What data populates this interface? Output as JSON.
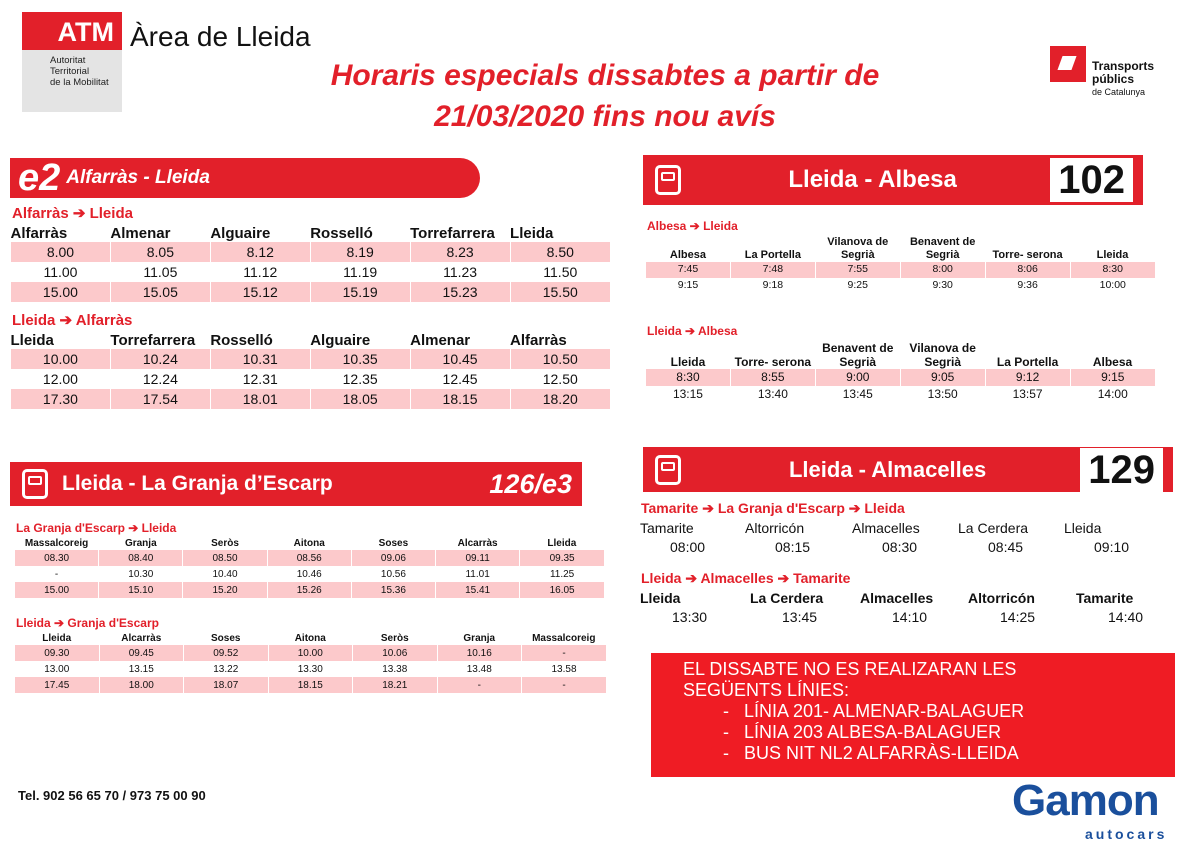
{
  "header": {
    "atm": "ATM",
    "atm_sub": [
      "Autoritat",
      "Territorial",
      "de la Mobilitat"
    ],
    "area": "Àrea de Lleida",
    "title_line1": "Horaris especials dissabtes a partir de",
    "title_line2": "21/03/2020 fins nou avís",
    "tpc_line1": "Transports",
    "tpc_line2": "públics",
    "tpc_line3": "de Catalunya"
  },
  "e2": {
    "code": "e2",
    "route": "Alfarràs - Lleida",
    "tables": [
      {
        "title": "Alfarràs  ➔  Lleida",
        "cols": [
          "Alfarràs",
          "Almenar",
          "Alguaire",
          "Rosselló",
          "Torrefarrera",
          "Lleida"
        ],
        "rows": [
          [
            "8.00",
            "8.05",
            "8.12",
            "8.19",
            "8.23",
            "8.50"
          ],
          [
            "11.00",
            "11.05",
            "11.12",
            "11.19",
            "11.23",
            "11.50"
          ],
          [
            "15.00",
            "15.05",
            "15.12",
            "15.19",
            "15.23",
            "15.50"
          ]
        ]
      },
      {
        "title": "Lleida  ➔  Alfarràs",
        "cols": [
          "Lleida",
          "Torrefarrera",
          "Rosselló",
          "Alguaire",
          "Almenar",
          "Alfarràs"
        ],
        "rows": [
          [
            "10.00",
            "10.24",
            "10.31",
            "10.35",
            "10.45",
            "10.50"
          ],
          [
            "12.00",
            "12.24",
            "12.31",
            "12.35",
            "12.45",
            "12.50"
          ],
          [
            "17.30",
            "17.54",
            "18.01",
            "18.05",
            "18.15",
            "18.20"
          ]
        ]
      }
    ]
  },
  "l126": {
    "route": "Lleida - La Granja d’Escarp",
    "num": "126/e3",
    "tables": [
      {
        "title": "La Granja d'Escarp  ➔  Lleida",
        "cols": [
          "Massalcoreig",
          "Granja",
          "Seròs",
          "Aitona",
          "Soses",
          "Alcarràs",
          "Lleida"
        ],
        "rows": [
          [
            "08.30",
            "08.40",
            "08.50",
            "08.56",
            "09.06",
            "09.11",
            "09.35"
          ],
          [
            "-",
            "10.30",
            "10.40",
            "10.46",
            "10.56",
            "11.01",
            "11.25"
          ],
          [
            "15.00",
            "15.10",
            "15.20",
            "15.26",
            "15.36",
            "15.41",
            "16.05"
          ]
        ]
      },
      {
        "title": "Lleida  ➔  Granja d'Escarp",
        "cols": [
          "Lleida",
          "Alcarràs",
          "Soses",
          "Aitona",
          "Seròs",
          "Granja",
          "Massalcoreig"
        ],
        "rows": [
          [
            "09.30",
            "09.45",
            "09.52",
            "10.00",
            "10.06",
            "10.16",
            "-"
          ],
          [
            "13.00",
            "13.15",
            "13.22",
            "13.30",
            "13.38",
            "13.48",
            "13.58"
          ],
          [
            "17.45",
            "18.00",
            "18.07",
            "18.15",
            "18.21",
            "-",
            "-"
          ]
        ]
      }
    ]
  },
  "l102": {
    "route": "Lleida - Albesa",
    "num": "102",
    "tables": [
      {
        "title": "Albesa  ➔  Lleida",
        "cols": [
          "Albesa",
          "La Portella",
          "Vilanova de Segrià",
          "Benavent de Segrià",
          "Torre- serona",
          "Lleida"
        ],
        "rows": [
          [
            "7:45",
            "7:48",
            "7:55",
            "8:00",
            "8:06",
            "8:30"
          ],
          [
            "9:15",
            "9:18",
            "9:25",
            "9:30",
            "9:36",
            "10:00"
          ]
        ]
      },
      {
        "title": "Lleida  ➔  Albesa",
        "cols": [
          "Lleida",
          "Torre- serona",
          "Benavent de Segrià",
          "Vilanova de Segrià",
          "La Portella",
          "Albesa"
        ],
        "rows": [
          [
            "8:30",
            "8:55",
            "9:00",
            "9:05",
            "9:12",
            "9:15"
          ],
          [
            "13:15",
            "13:40",
            "13:45",
            "13:50",
            "13:57",
            "14:00"
          ]
        ]
      }
    ]
  },
  "l129": {
    "route": "Lleida - Almacelles",
    "num": "129",
    "tables": [
      {
        "title": "Tamarite ➔ La Granja d'Escarp ➔ Lleida",
        "cols": [
          "Tamarite",
          "Altorricón",
          "Almacelles",
          "La Cerdera",
          "Lleida"
        ],
        "rows": [
          [
            "08:00",
            "08:15",
            "08:30",
            "08:45",
            "09:10"
          ]
        ]
      },
      {
        "title": "Lleida ➔  Almacelles  ➔ Tamarite",
        "cols": [
          "Lleida",
          "La Cerdera",
          "Almacelles",
          "Altorricón",
          "Tamarite"
        ],
        "rows": [
          [
            "13:30",
            "13:45",
            "14:10",
            "14:25",
            "14:40"
          ]
        ]
      }
    ]
  },
  "notice": {
    "line1": "EL DISSABTE NO ES REALIZARAN LES",
    "line2": "SEGÜENTS LÍNIES:",
    "items": [
      "LÍNIA 201- ALMENAR-BALAGUER",
      "LÍNIA 203 ALBESA-BALAGUER",
      "BUS NIT NL2 ALFARRÀS-LLEIDA"
    ]
  },
  "footer": {
    "tel": "Tel. 902 56 65 70 / 973 75 00 90",
    "gamon": "Gamon",
    "autocars": "autocars"
  }
}
